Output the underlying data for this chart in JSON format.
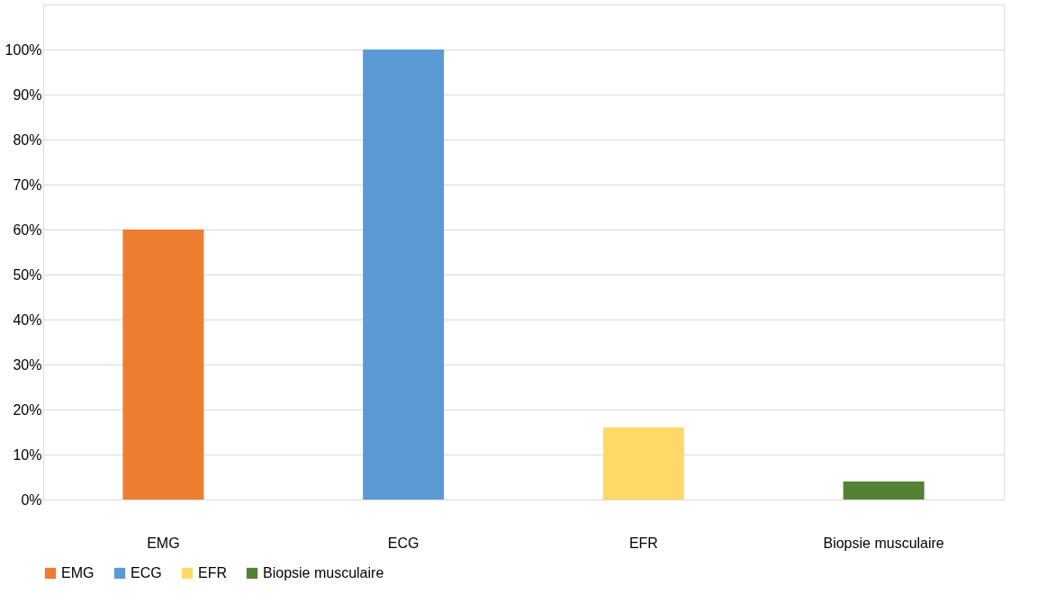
{
  "chart_data": {
    "type": "bar",
    "categories": [
      "EMG",
      "ECG",
      "EFR",
      "Biopsie musculaire"
    ],
    "series": [
      {
        "name": "EMG",
        "color": "#ed7d31",
        "values": [
          60,
          null,
          null,
          null
        ]
      },
      {
        "name": "ECG",
        "color": "#5b9bd5",
        "values": [
          null,
          100,
          null,
          null
        ]
      },
      {
        "name": "EFR",
        "color": "#ffd966",
        "values": [
          null,
          null,
          16,
          null
        ]
      },
      {
        "name": "Biopsie musculaire",
        "color": "#548235",
        "values": [
          null,
          null,
          null,
          4
        ]
      }
    ],
    "ylim": [
      0,
      110
    ],
    "yticks": [
      {
        "value": 0,
        "label": "0%"
      },
      {
        "value": 10,
        "label": "10%"
      },
      {
        "value": 20,
        "label": "20%"
      },
      {
        "value": 30,
        "label": "30%"
      },
      {
        "value": 40,
        "label": "40%"
      },
      {
        "value": 50,
        "label": "50%"
      },
      {
        "value": 60,
        "label": "60%"
      },
      {
        "value": 70,
        "label": "70%"
      },
      {
        "value": 80,
        "label": "80%"
      },
      {
        "value": 90,
        "label": "90%"
      },
      {
        "value": 100,
        "label": "100%"
      },
      {
        "value": 110,
        "label": null
      }
    ],
    "grid": "y",
    "legend": "bottom"
  }
}
